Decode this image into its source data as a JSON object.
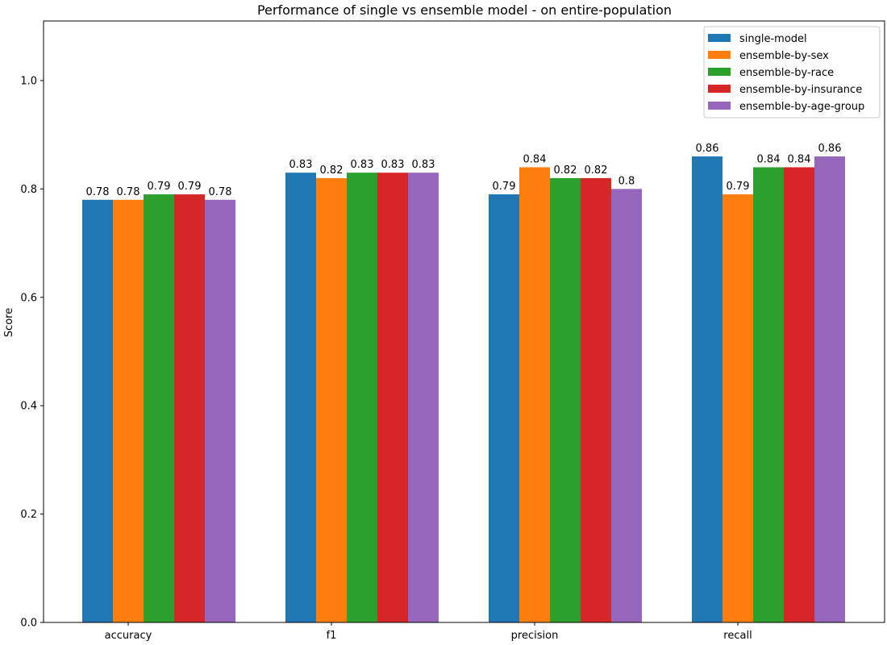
{
  "chart_data": {
    "type": "bar",
    "title": "Performance of single vs ensemble model - on entire-population",
    "xlabel": "",
    "ylabel": "Score",
    "ylim": [
      0,
      1.11
    ],
    "yticks": [
      "0.0",
      "0.2",
      "0.4",
      "0.6",
      "0.8",
      "1.0"
    ],
    "categories": [
      "accuracy",
      "f1",
      "precision",
      "recall"
    ],
    "legend_position": "top-right",
    "grid": false,
    "series": [
      {
        "name": "single-model",
        "color": "#1f77b4",
        "values": [
          0.78,
          0.83,
          0.79,
          0.86
        ],
        "labels": [
          "0.78",
          "0.83",
          "0.79",
          "0.86"
        ]
      },
      {
        "name": "ensemble-by-sex",
        "color": "#ff7f0e",
        "values": [
          0.78,
          0.82,
          0.84,
          0.79
        ],
        "labels": [
          "0.78",
          "0.82",
          "0.84",
          "0.79"
        ]
      },
      {
        "name": "ensemble-by-race",
        "color": "#2ca02c",
        "values": [
          0.79,
          0.83,
          0.82,
          0.84
        ],
        "labels": [
          "0.79",
          "0.83",
          "0.82",
          "0.84"
        ]
      },
      {
        "name": "ensemble-by-insurance",
        "color": "#d62728",
        "values": [
          0.79,
          0.83,
          0.82,
          0.84
        ],
        "labels": [
          "0.79",
          "0.83",
          "0.82",
          "0.84"
        ]
      },
      {
        "name": "ensemble-by-age-group",
        "color": "#9467bd",
        "values": [
          0.78,
          0.83,
          0.8,
          0.86
        ],
        "labels": [
          "0.78",
          "0.83",
          "0.8",
          "0.86"
        ]
      }
    ]
  }
}
